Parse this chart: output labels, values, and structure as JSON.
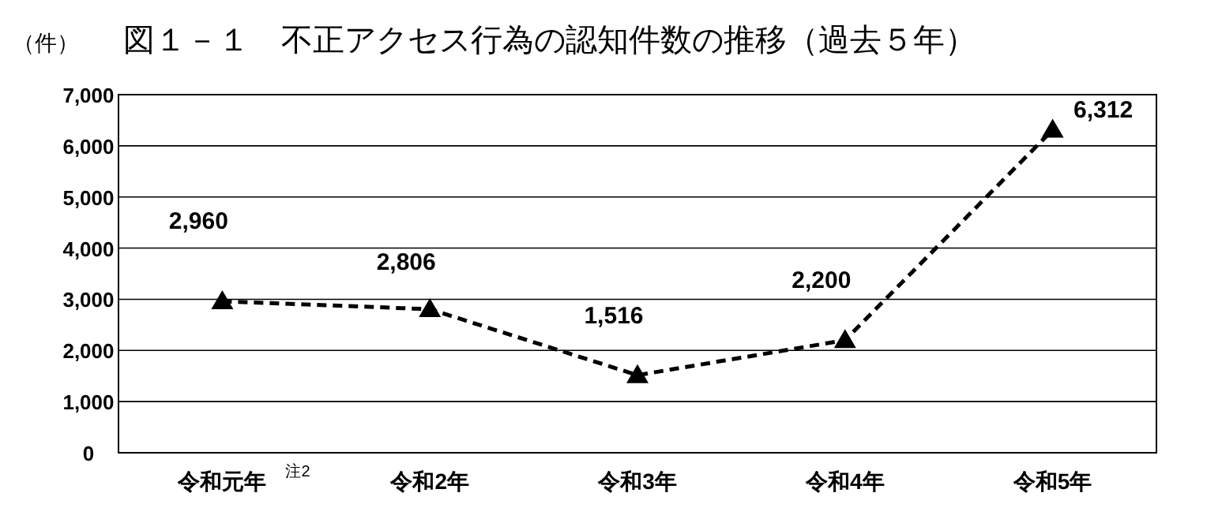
{
  "chart_data": {
    "type": "line",
    "title": "図１－１　不正アクセス行為の認知件数の推移（過去５年）",
    "ylabel": "（件）",
    "categories": [
      "令和元年",
      "令和2年",
      "令和3年",
      "令和4年",
      "令和5年"
    ],
    "series": [
      {
        "color": "#000000",
        "values": [
          2960,
          2806,
          1516,
          2200,
          6312
        ]
      }
    ],
    "value_labels": [
      "2,960",
      "2,806",
      "1,516",
      "2,200",
      "6,312"
    ],
    "annotations": [
      "注2"
    ],
    "ylim": [
      0,
      7000
    ],
    "yticks": [
      0,
      {
        "value": 1000,
        "label": "1,000"
      },
      {
        "value": 2000,
        "label": "2,000"
      },
      {
        "value": 3000,
        "label": "3,000"
      },
      {
        "value": 4000,
        "label": "4,000"
      },
      {
        "value": 5000,
        "label": "5,000"
      },
      {
        "value": 6000,
        "label": "6,000"
      },
      {
        "value": 7000,
        "label": "7,000"
      }
    ],
    "grid": "y",
    "marker": "triangle",
    "line_style": "dashed"
  }
}
